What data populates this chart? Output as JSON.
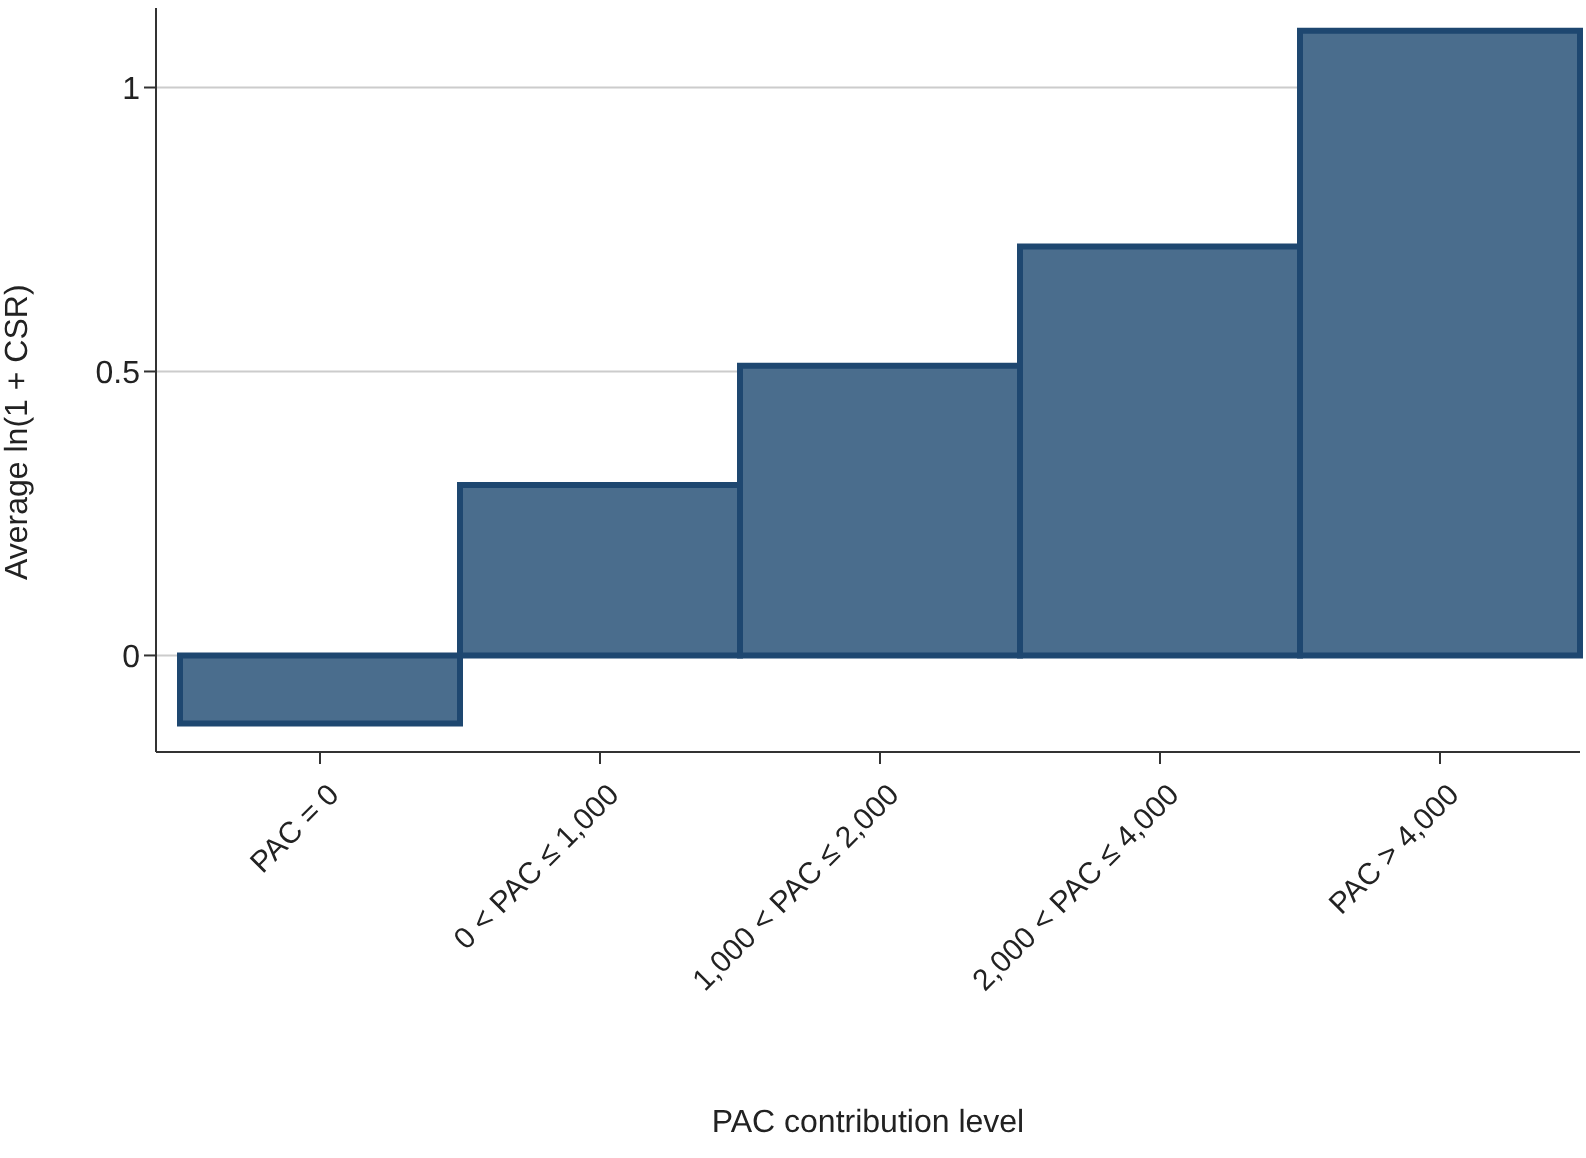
{
  "chart_data": {
    "type": "bar",
    "xlabel": "PAC contribution level",
    "ylabel": "Average ln(1 + CSR)",
    "categories": [
      "PAC = 0",
      "0 < PAC ≤ 1,000",
      "1,000 < PAC ≤ 2,000",
      "2,000 < PAC ≤ 4,000",
      "PAC > 4,000"
    ],
    "values": [
      -0.12,
      0.3,
      0.51,
      0.72,
      1.1
    ],
    "color": "#4a6d8d",
    "ylim": [
      -0.17,
      1.14
    ],
    "yticks": [
      0,
      0.5,
      1
    ],
    "grid": "y"
  }
}
